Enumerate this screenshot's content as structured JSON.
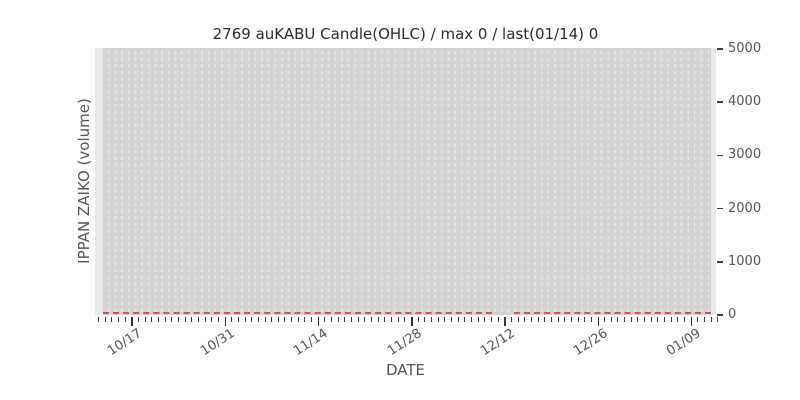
{
  "chart_data": {
    "type": "candlestick",
    "title": "2769 auKABU Candle(OHLC) / max 0 / last(01/14) 0",
    "xlabel": "DATE",
    "ylabel": "IPPAN ZAIKO (volume)",
    "x_tick_labels": [
      "10/17",
      "10/31",
      "11/14",
      "11/28",
      "12/12",
      "12/26",
      "01/09"
    ],
    "x_minor_tick_unit": "1 day",
    "x_minor_tick_count": 94,
    "x_major_tick_indices": [
      5,
      19,
      33,
      47,
      61,
      75,
      89
    ],
    "y_tick_labels": [
      "0",
      "1000",
      "2000",
      "3000",
      "4000",
      "5000"
    ],
    "y_tick_values": [
      0,
      1000,
      2000,
      3000,
      4000,
      5000
    ],
    "ylim": [
      -60,
      5060
    ],
    "grid": "vertical dashed daily gridlines on gray band",
    "legend": "none",
    "series": [
      {
        "name": "IPPAN ZAIKO volume",
        "render": "dashed horizontal line at zero",
        "constant_value": 0,
        "max": 0,
        "last_date": "01/14",
        "last_value": 0,
        "segments_frac": [
          [
            0.0,
            0.64
          ],
          [
            0.676,
            1.0
          ]
        ]
      }
    ]
  },
  "colors": {
    "background": "#ffffff",
    "plot_margin": "#e9e9e9",
    "plot_band": "#d3d3d3",
    "gridline": "#e6e6e6",
    "zero_line": "#dd4f4f",
    "tick_mark": "#3d3d3d",
    "tick_label": "#555555",
    "title_text": "#2b2b2b",
    "axis_label": "#555555"
  }
}
